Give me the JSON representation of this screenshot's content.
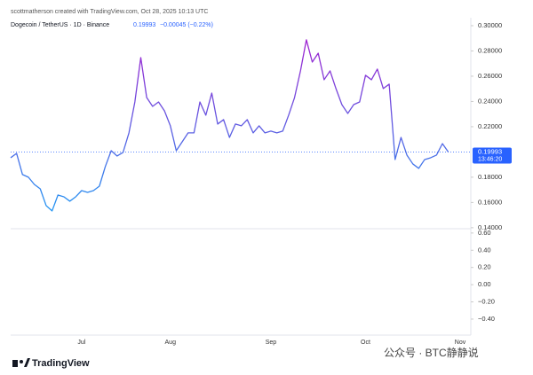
{
  "chart_data": {
    "type": "line",
    "header": "scottmatherson created with TradingView.com, Oct 28, 2025 10:13 UTC",
    "title": "Dogecoin / TetherUS · 1D · Binance",
    "last_price": {
      "value": 0.19993,
      "label": "0.19993"
    },
    "change": "−0.00045 (−0.22%)",
    "timer": "13:46:20",
    "categories": [
      null,
      null,
      null,
      null,
      null,
      null,
      null,
      null,
      null,
      null,
      null,
      null,
      "Jul",
      null,
      null,
      null,
      null,
      null,
      null,
      null,
      null,
      null,
      null,
      null,
      null,
      null,
      null,
      "Aug",
      null,
      null,
      null,
      null,
      null,
      null,
      null,
      null,
      null,
      null,
      null,
      null,
      null,
      null,
      null,
      null,
      "Sep",
      null,
      null,
      null,
      null,
      null,
      null,
      null,
      null,
      null,
      null,
      null,
      null,
      null,
      null,
      null,
      "Oct",
      null,
      null,
      null,
      null,
      null,
      null,
      null,
      null,
      null,
      null,
      null,
      null,
      null,
      null,
      null,
      "Nov"
    ],
    "series": [
      {
        "colors": [
          "#2196f3",
          "#a21fd0"
        ],
        "values": [
          0.1954,
          0.1989,
          0.1821,
          0.18,
          0.1743,
          0.1708,
          0.1575,
          0.1533,
          0.1659,
          0.1645,
          0.161,
          0.1645,
          0.1694,
          0.168,
          0.1694,
          0.1729,
          0.1884,
          0.201,
          0.1968,
          0.1996,
          0.2151,
          0.2396,
          0.2747,
          0.2431,
          0.2361,
          0.2396,
          0.2326,
          0.2207,
          0.201,
          0.208,
          0.2151,
          0.2151,
          0.2396,
          0.2291,
          0.2466,
          0.2221,
          0.2256,
          0.2115,
          0.2221,
          0.2207,
          0.2256,
          0.2151,
          0.2207,
          0.2151,
          0.2165,
          0.2151,
          0.2165,
          0.2291,
          0.2431,
          0.2642,
          0.2888,
          0.2712,
          0.2782,
          0.2572,
          0.2642,
          0.2502,
          0.2375,
          0.2305,
          0.2375,
          0.2396,
          0.2607,
          0.2572,
          0.2656,
          0.2502,
          0.2537,
          0.194,
          0.2115,
          0.1975,
          0.1905,
          0.187,
          0.194,
          0.1954,
          0.1975,
          0.2066,
          0.19993,
          null,
          null
        ]
      }
    ],
    "ylim": [
      0.1392,
      0.3063
    ],
    "yticks": [
      {
        "value": 0.3,
        "label": "0.30000"
      },
      {
        "value": 0.28,
        "label": "0.28000"
      },
      {
        "value": 0.26,
        "label": "0.26000"
      },
      {
        "value": 0.24,
        "label": "0.24000"
      },
      {
        "value": 0.22,
        "label": "0.22000"
      },
      {
        "value": 0.18,
        "label": "0.18000"
      },
      {
        "value": 0.16,
        "label": "0.16000"
      },
      {
        "value": 0.14,
        "label": "0.14000"
      }
    ],
    "y2lim": [
      -0.586,
      0.65
    ],
    "y2ticks": [
      {
        "value": 0.6,
        "label": "0.60"
      },
      {
        "value": 0.4,
        "label": "0.40"
      },
      {
        "value": 0.2,
        "label": "0.20"
      },
      {
        "value": 0,
        "label": "0.00"
      },
      {
        "value": -0.2,
        "label": "−0.20"
      },
      {
        "value": -0.4,
        "label": "−0.40"
      }
    ],
    "grid": false,
    "brand": "TradingView",
    "watermark": "公众号 · BTC静静说"
  }
}
